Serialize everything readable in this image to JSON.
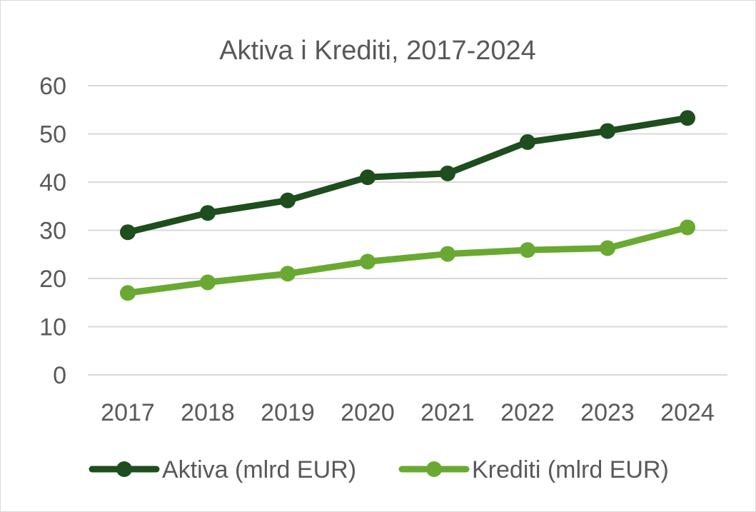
{
  "chart_data": {
    "type": "line",
    "title": "Aktiva i Krediti, 2017-2024",
    "xlabel": "",
    "ylabel": "",
    "categories": [
      "2017",
      "2018",
      "2019",
      "2020",
      "2021",
      "2022",
      "2023",
      "2024"
    ],
    "ylim": [
      0,
      60
    ],
    "yticks": [
      "0",
      "10",
      "20",
      "30",
      "40",
      "50",
      "60"
    ],
    "grid": true,
    "legend_position": "bottom",
    "series": [
      {
        "name": "Aktiva (mlrd EUR)",
        "color": "#1e4d1e",
        "values": [
          29.6,
          33.6,
          36.2,
          41.0,
          41.8,
          48.3,
          50.6,
          53.3
        ]
      },
      {
        "name": "Krediti (mlrd EUR)",
        "color": "#6aa931",
        "values": [
          17.0,
          19.2,
          21.0,
          23.5,
          25.1,
          25.9,
          26.3,
          30.6
        ]
      }
    ]
  }
}
